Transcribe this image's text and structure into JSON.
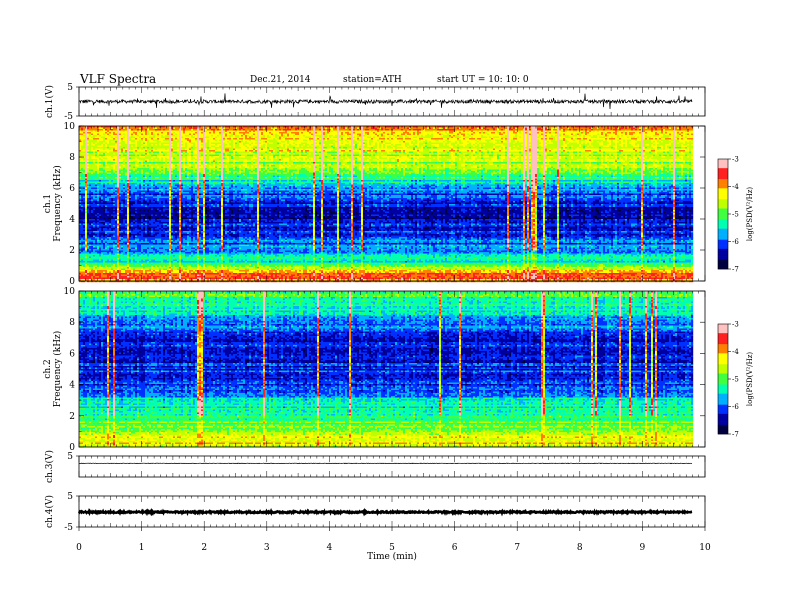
{
  "header": {
    "title": "VLF  Spectra",
    "date": "Dec.21, 2014",
    "station": "station=ATH",
    "start": "start  UT  =     10: 10: 0"
  },
  "colors": {
    "frame": "#000000",
    "waveform": "#000000",
    "spectrogram_colormap": [
      "#000040",
      "#0000a0",
      "#0030ff",
      "#00b0ff",
      "#00ffb0",
      "#40ff40",
      "#c0ff00",
      "#ffff00",
      "#ff8000",
      "#ff2020",
      "#ffc0c0",
      "#ffffff"
    ]
  },
  "chart_data": [
    {
      "type": "line",
      "ylabel": "ch.1(V)",
      "xlim": [
        0,
        10
      ],
      "ylim": [
        -5,
        5
      ],
      "yticks": [
        "5",
        "-5"
      ],
      "waveform": {
        "mean": 0,
        "noise_amplitude": 0.6,
        "spike_amplitude": 2.5
      },
      "data_end_min": 9.8
    },
    {
      "type": "heatmap",
      "ylabel": "ch.1\nFrequency  (kHz)",
      "xlim": [
        0,
        10
      ],
      "ylim": [
        0,
        10
      ],
      "yticks": [
        "0",
        "2",
        "4",
        "6",
        "8",
        "10"
      ],
      "colorbar": {
        "label": "log(PSD(V²/Hz)",
        "range": [
          -7,
          -3
        ],
        "ticks": [
          "-3",
          "-4",
          "-5",
          "-6",
          "-7"
        ]
      },
      "profile_log_psd": [
        {
          "freq_khz": 0.0,
          "value": -4.0
        },
        {
          "freq_khz": 0.5,
          "value": -3.6
        },
        {
          "freq_khz": 1.0,
          "value": -5.3
        },
        {
          "freq_khz": 2.0,
          "value": -5.8
        },
        {
          "freq_khz": 3.0,
          "value": -6.2
        },
        {
          "freq_khz": 4.0,
          "value": -6.4
        },
        {
          "freq_khz": 5.0,
          "value": -6.3
        },
        {
          "freq_khz": 6.0,
          "value": -5.8
        },
        {
          "freq_khz": 7.0,
          "value": -4.9
        },
        {
          "freq_khz": 8.0,
          "value": -4.6
        },
        {
          "freq_khz": 9.0,
          "value": -4.3
        },
        {
          "freq_khz": 10.0,
          "value": -3.9
        }
      ],
      "data_end_min": 9.8
    },
    {
      "type": "heatmap",
      "ylabel": "ch.2\nFrequency  (kHz)",
      "xlim": [
        0,
        10
      ],
      "ylim": [
        0,
        10
      ],
      "yticks": [
        "0",
        "2",
        "4",
        "6",
        "8",
        "10"
      ],
      "colorbar": {
        "label": "log(PSD(V²/Hz)",
        "range": [
          -7,
          -3
        ],
        "ticks": [
          "-3",
          "-4",
          "-5",
          "-6",
          "-7"
        ]
      },
      "profile_log_psd": [
        {
          "freq_khz": 0.0,
          "value": -4.4
        },
        {
          "freq_khz": 0.5,
          "value": -4.2
        },
        {
          "freq_khz": 1.0,
          "value": -4.6
        },
        {
          "freq_khz": 2.0,
          "value": -5.3
        },
        {
          "freq_khz": 3.0,
          "value": -5.6
        },
        {
          "freq_khz": 4.0,
          "value": -6.0
        },
        {
          "freq_khz": 5.0,
          "value": -6.2
        },
        {
          "freq_khz": 6.0,
          "value": -6.4
        },
        {
          "freq_khz": 7.0,
          "value": -6.1
        },
        {
          "freq_khz": 8.0,
          "value": -5.8
        },
        {
          "freq_khz": 9.0,
          "value": -5.4
        },
        {
          "freq_khz": 10.0,
          "value": -5.0
        }
      ],
      "data_end_min": 9.8
    },
    {
      "type": "line",
      "ylabel": "ch.3(V)",
      "xlim": [
        0,
        10
      ],
      "ylim": [
        -5,
        5
      ],
      "yticks": [
        "5"
      ],
      "waveform": {
        "mean": 1.5,
        "noise_amplitude": 0.12,
        "spike_amplitude": 0
      },
      "data_end_min": 9.8
    },
    {
      "type": "line",
      "ylabel": "ch.4(V)",
      "xlim": [
        0,
        10
      ],
      "ylim": [
        -5,
        5
      ],
      "yticks": [
        "5",
        "-5"
      ],
      "waveform": {
        "mean": -0.2,
        "noise_amplitude": 0.25,
        "spike_amplitude": 0
      },
      "data_end_min": 9.8
    }
  ],
  "x_axis": {
    "label": "Time  (min)",
    "ticks": [
      "0",
      "1",
      "2",
      "3",
      "4",
      "5",
      "6",
      "7",
      "8",
      "9",
      "10"
    ]
  }
}
